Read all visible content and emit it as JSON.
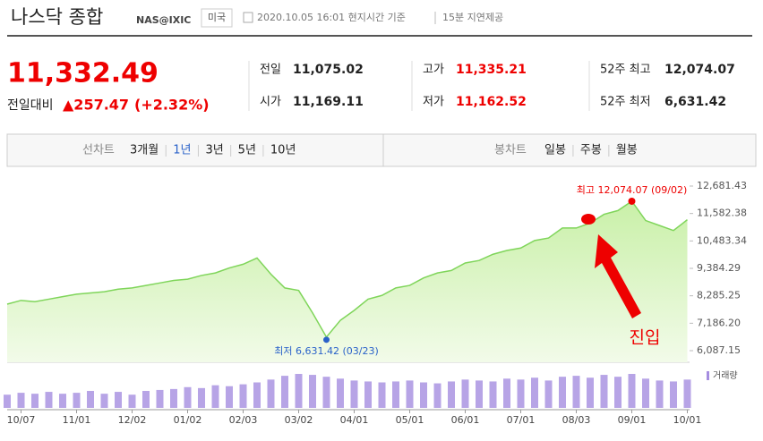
{
  "header": {
    "title": "나스닥 종합",
    "code": "NAS@IXIC",
    "market": "미국",
    "timestamp": "2020.10.05 16:01 현지시간 기준",
    "delay": "15분 지연제공"
  },
  "quote": {
    "price": "11,332.49",
    "change_label": "전일대비",
    "change": "▲257.47",
    "change_pct": "(+2.32%)",
    "fields": [
      {
        "label": "전일",
        "value": "11,075.02"
      },
      {
        "label": "고가",
        "value": "11,335.21"
      },
      {
        "label": "52주 최고",
        "value": "12,074.07"
      },
      {
        "label": "시가",
        "value": "11,169.11"
      },
      {
        "label": "저가",
        "value": "11,162.52"
      },
      {
        "label": "52주 최저",
        "value": "6,631.42"
      }
    ]
  },
  "tabs": {
    "line_label": "선차트",
    "line_items": [
      "3개월",
      "1년",
      "3년",
      "5년",
      "10년"
    ],
    "candle_label": "봉차트",
    "candle_items": [
      "일봉",
      "주봉",
      "월봉"
    ]
  },
  "chart_data": {
    "type": "line",
    "color": "#7fd55a",
    "volume_color": "#a58de0",
    "volume_label": "거래량",
    "categories": [
      null,
      "10/07",
      null,
      null,
      null,
      "11/01",
      null,
      null,
      null,
      "12/02",
      null,
      null,
      null,
      "01/02",
      null,
      null,
      null,
      "02/03",
      null,
      null,
      null,
      "03/02",
      null,
      null,
      null,
      "04/01",
      null,
      null,
      null,
      "05/01",
      null,
      null,
      null,
      "06/01",
      null,
      null,
      null,
      "07/01",
      null,
      null,
      null,
      "08/03",
      null,
      null,
      null,
      "09/01",
      null,
      null,
      null,
      "10/01"
    ],
    "values": [
      7950,
      8100,
      8050,
      8150,
      8250,
      8350,
      8400,
      8450,
      8550,
      8600,
      8700,
      8800,
      8900,
      8950,
      9100,
      9200,
      9400,
      9550,
      9800,
      9150,
      8600,
      8500,
      7600,
      6631.42,
      7300,
      7700,
      8150,
      8300,
      8600,
      8700,
      9000,
      9200,
      9300,
      9600,
      9700,
      9950,
      10100,
      10200,
      10500,
      10600,
      11000,
      11000,
      11200,
      11550,
      11700,
      12074.07,
      11300,
      11100,
      10900,
      11332.49
    ],
    "volume": [
      14,
      16,
      15,
      17,
      15,
      16,
      18,
      15,
      17,
      14,
      18,
      19,
      20,
      22,
      21,
      24,
      23,
      25,
      27,
      30,
      34,
      36,
      35,
      33,
      31,
      29,
      28,
      27,
      28,
      29,
      27,
      26,
      28,
      30,
      29,
      28,
      31,
      30,
      32,
      29,
      33,
      34,
      32,
      35,
      33,
      36,
      31,
      29,
      28,
      30
    ],
    "ylim": [
      6087.15,
      12681.43
    ],
    "yticks": [
      {
        "value": 12681.43,
        "label": "12,681.43"
      },
      {
        "value": 11582.38,
        "label": "11,582.38"
      },
      {
        "value": 10483.34,
        "label": "10,483.34"
      },
      {
        "value": 9384.29,
        "label": "9,384.29"
      },
      {
        "value": 8285.25,
        "label": "8,285.25"
      },
      {
        "value": 7186.2,
        "label": "7,186.20"
      },
      {
        "value": 6087.15,
        "label": "6,087.15"
      }
    ],
    "high_label": "최고 12,074.07 (09/02)",
    "low_label": "최저 6,631.42 (03/23)",
    "annotation": "진입"
  }
}
